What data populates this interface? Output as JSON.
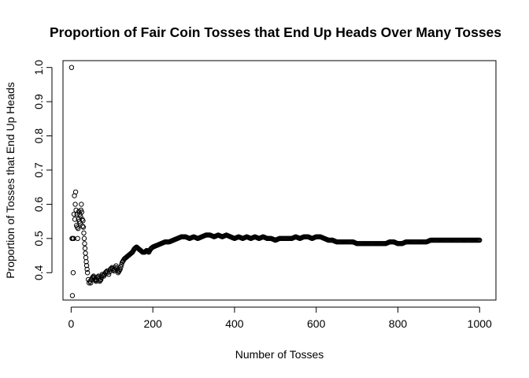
{
  "chart_data": {
    "type": "scatter",
    "title": "Proportion of Fair Coin Tosses that End Up Heads Over Many Tosses",
    "xlabel": "Number of Tosses",
    "ylabel": "Proportion of Tosses that End Up Heads",
    "xlim": [
      -20,
      1040
    ],
    "ylim": [
      0.32,
      1.02
    ],
    "x_ticks": [
      0,
      200,
      400,
      600,
      800,
      1000
    ],
    "x_tick_labels": [
      "0",
      "200",
      "400",
      "600",
      "800",
      "1000"
    ],
    "y_ticks": [
      0.4,
      0.5,
      0.6,
      0.7,
      0.8,
      0.9,
      1.0
    ],
    "y_tick_labels": [
      "0.4",
      "0.5",
      "0.6",
      "0.7",
      "0.8",
      "0.9",
      "1.0"
    ],
    "grid": false,
    "legend": "none",
    "marker": "open-circle",
    "x": [
      1,
      2,
      3,
      4,
      5,
      6,
      7,
      8,
      9,
      10,
      11,
      12,
      13,
      14,
      15,
      16,
      17,
      18,
      19,
      20,
      21,
      22,
      23,
      24,
      25,
      26,
      27,
      28,
      29,
      30,
      31,
      32,
      33,
      34,
      35,
      36,
      37,
      38,
      39,
      40,
      42,
      44,
      46,
      48,
      50,
      52,
      55,
      58,
      61,
      64,
      67,
      70,
      73,
      76,
      80,
      84,
      88,
      92,
      96,
      100,
      105,
      110,
      115,
      120,
      125,
      130,
      135,
      140,
      145,
      150,
      155,
      160,
      165,
      170,
      175,
      180,
      185,
      190,
      195,
      200,
      210,
      220,
      230,
      240,
      250,
      260,
      270,
      280,
      290,
      300,
      310,
      320,
      330,
      340,
      350,
      360,
      370,
      380,
      390,
      400,
      410,
      420,
      430,
      440,
      450,
      460,
      470,
      480,
      490,
      500,
      510,
      520,
      530,
      540,
      550,
      560,
      570,
      580,
      590,
      600,
      610,
      620,
      630,
      640,
      650,
      660,
      670,
      680,
      690,
      700,
      710,
      720,
      730,
      740,
      750,
      760,
      770,
      780,
      790,
      800,
      810,
      820,
      830,
      840,
      850,
      860,
      870,
      880,
      890,
      900,
      910,
      920,
      930,
      940,
      950,
      960,
      970,
      980,
      990,
      1000
    ],
    "y": [
      1.0,
      0.5,
      0.333,
      0.5,
      0.4,
      0.5,
      0.571,
      0.625,
      0.556,
      0.6,
      0.636,
      0.583,
      0.538,
      0.571,
      0.533,
      0.5,
      0.529,
      0.556,
      0.579,
      0.55,
      0.571,
      0.545,
      0.565,
      0.583,
      0.6,
      0.577,
      0.556,
      0.536,
      0.552,
      0.533,
      0.516,
      0.5,
      0.485,
      0.471,
      0.457,
      0.444,
      0.432,
      0.421,
      0.41,
      0.4,
      0.38,
      0.37,
      0.375,
      0.37,
      0.38,
      0.385,
      0.39,
      0.38,
      0.375,
      0.385,
      0.39,
      0.375,
      0.38,
      0.395,
      0.39,
      0.4,
      0.405,
      0.395,
      0.41,
      0.415,
      0.405,
      0.42,
      0.4,
      0.41,
      0.43,
      0.44,
      0.445,
      0.45,
      0.455,
      0.46,
      0.47,
      0.475,
      0.47,
      0.465,
      0.46,
      0.46,
      0.465,
      0.46,
      0.47,
      0.475,
      0.48,
      0.485,
      0.49,
      0.49,
      0.495,
      0.5,
      0.505,
      0.505,
      0.5,
      0.505,
      0.5,
      0.505,
      0.51,
      0.51,
      0.505,
      0.51,
      0.505,
      0.51,
      0.505,
      0.5,
      0.505,
      0.5,
      0.505,
      0.5,
      0.505,
      0.5,
      0.505,
      0.5,
      0.5,
      0.495,
      0.5,
      0.5,
      0.5,
      0.5,
      0.505,
      0.5,
      0.505,
      0.505,
      0.5,
      0.505,
      0.505,
      0.5,
      0.495,
      0.495,
      0.49,
      0.49,
      0.49,
      0.49,
      0.49,
      0.485,
      0.485,
      0.485,
      0.485,
      0.485,
      0.485,
      0.485,
      0.485,
      0.49,
      0.49,
      0.485,
      0.485,
      0.49,
      0.49,
      0.49,
      0.49,
      0.49,
      0.49,
      0.495,
      0.495,
      0.495,
      0.495,
      0.495,
      0.495,
      0.495,
      0.495,
      0.495,
      0.495,
      0.495,
      0.495,
      0.495
    ]
  }
}
